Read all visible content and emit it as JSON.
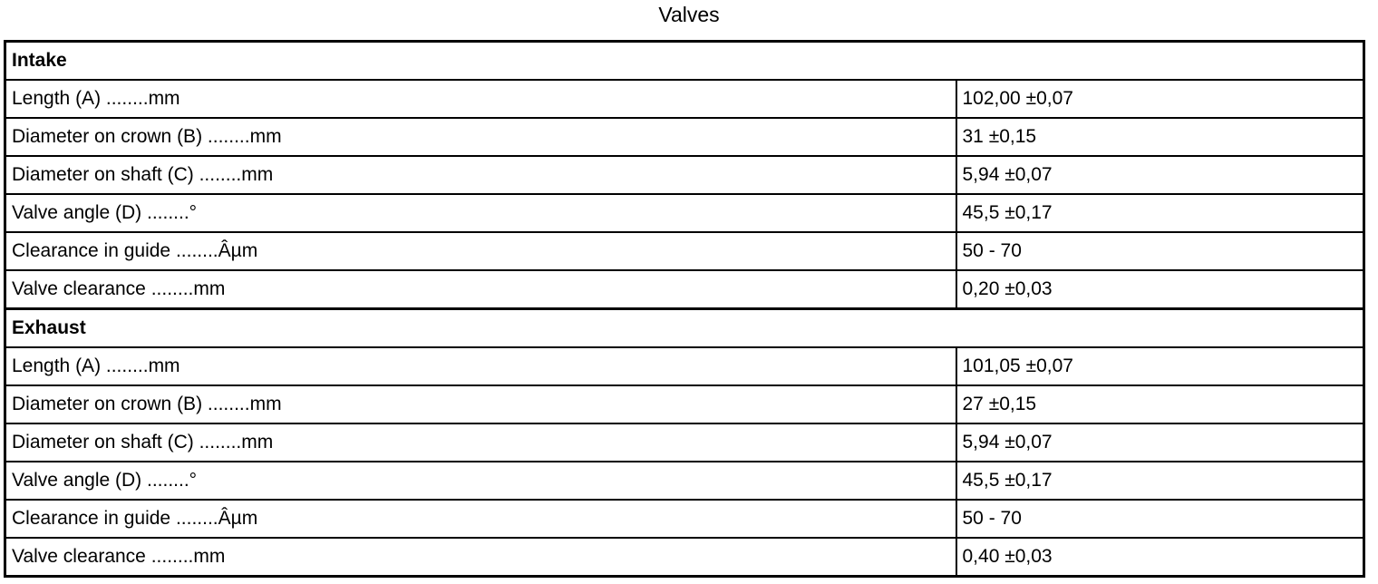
{
  "title": "Valves",
  "table": {
    "sections": [
      {
        "header": "Intake",
        "rows": [
          {
            "label": "Length (A) ........mm",
            "value": "102,00 ±0,07"
          },
          {
            "label": "Diameter on crown (B) ........mm",
            "value": "31 ±0,15"
          },
          {
            "label": "Diameter on shaft (C) ........mm",
            "value": "5,94 ±0,07"
          },
          {
            "label": "Valve angle (D) ........°",
            "value": "45,5 ±0,17"
          },
          {
            "label": "Clearance in guide ........Âµm",
            "value": "50 - 70"
          },
          {
            "label": "Valve clearance ........mm",
            "value": "0,20 ±0,03"
          }
        ]
      },
      {
        "header": "Exhaust",
        "rows": [
          {
            "label": "Length (A) ........mm",
            "value": "101,05 ±0,07"
          },
          {
            "label": "Diameter on crown (B) ........mm",
            "value": "27 ±0,15"
          },
          {
            "label": "Diameter on shaft (C) ........mm",
            "value": "5,94 ±0,07"
          },
          {
            "label": "Valve angle (D) ........°",
            "value": "45,5 ±0,17"
          },
          {
            "label": "Clearance in guide ........Âµm",
            "value": "50 - 70"
          },
          {
            "label": "Valve clearance ........mm",
            "value": "0,40 ±0,03"
          }
        ]
      }
    ]
  }
}
